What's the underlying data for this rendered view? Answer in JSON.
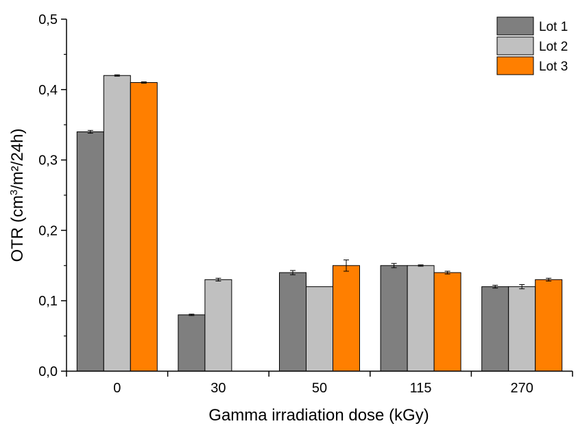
{
  "chart_data": {
    "type": "bar",
    "categories": [
      "0",
      "30",
      "50",
      "115",
      "270"
    ],
    "series": [
      {
        "name": "Lot 1",
        "color": "#7f7f7f",
        "values": [
          0.34,
          0.08,
          0.14,
          0.15,
          0.12
        ],
        "errors": [
          0.002,
          0.001,
          0.003,
          0.003,
          0.002
        ]
      },
      {
        "name": "Lot 2",
        "color": "#c0c0c0",
        "values": [
          0.42,
          0.13,
          0.12,
          0.15,
          0.12
        ],
        "errors": [
          0.001,
          0.002,
          0.0,
          0.001,
          0.003
        ]
      },
      {
        "name": "Lot 3",
        "color": "#ff7f00",
        "values": [
          0.41,
          null,
          0.15,
          0.14,
          0.13
        ],
        "errors": [
          0.001,
          null,
          0.008,
          0.002,
          0.002
        ]
      }
    ],
    "xlabel": "Gamma irradiation dose (kGy)",
    "ylabel_base": "OTR (cm",
    "ylabel_sup": "3",
    "ylabel_tail": "/m²/24h)",
    "ylim": [
      0,
      0.5
    ],
    "yticks": [
      "0,0",
      "0,1",
      "0,2",
      "0,3",
      "0,4",
      "0,5"
    ],
    "grid": false,
    "legend_position": "top-right"
  }
}
